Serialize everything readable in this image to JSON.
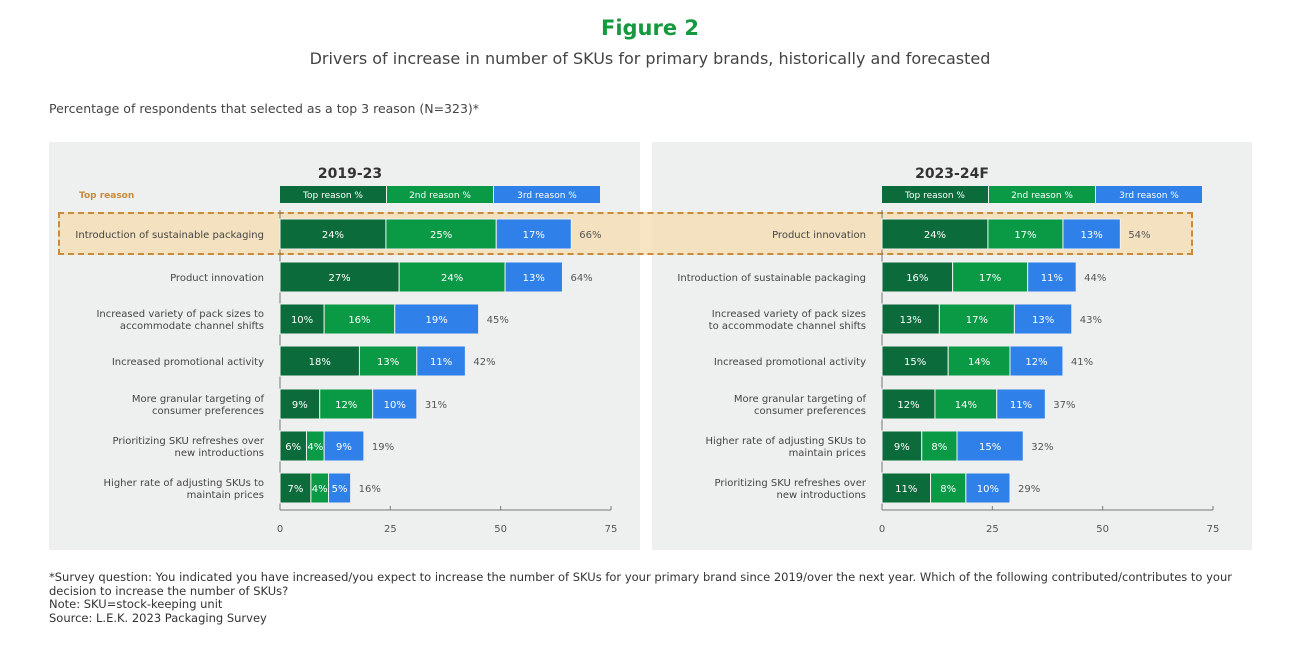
{
  "title": "Figure 2",
  "subtitle": "Drivers of increase in number of SKUs for primary brands, historically and forecasted",
  "description": "Percentage of respondents that selected as a top 3 reason (N=323)*",
  "colors": {
    "top": "#0b6b3a",
    "second": "#0a9a45",
    "third": "#2f80e8",
    "highlight": "#c98a3a",
    "title": "#14993f"
  },
  "chart_data": [
    {
      "type": "bar",
      "orientation": "horizontal",
      "stacked": true,
      "title": "2019-23",
      "highlight_label": "Top reason",
      "legend": [
        "Top reason %",
        "2nd reason %",
        "3rd reason %"
      ],
      "xlim": [
        0,
        75
      ],
      "xticks": [
        0,
        25,
        50,
        75
      ],
      "categories": [
        [
          "Introduction of sustainable packaging"
        ],
        [
          "Product innovation"
        ],
        [
          "Increased variety of pack sizes to",
          "accommodate channel shifts"
        ],
        [
          "Increased promotional activity"
        ],
        [
          "More granular targeting of",
          "consumer preferences"
        ],
        [
          "Prioritizing SKU refreshes over",
          "new introductions"
        ],
        [
          "Higher rate of adjusting SKUs to",
          "maintain prices"
        ]
      ],
      "series": [
        {
          "name": "Top reason %",
          "values": [
            24,
            27,
            10,
            18,
            9,
            6,
            7
          ]
        },
        {
          "name": "2nd reason %",
          "values": [
            25,
            24,
            16,
            13,
            12,
            4,
            4
          ]
        },
        {
          "name": "3rd reason %",
          "values": [
            17,
            13,
            19,
            11,
            10,
            9,
            5
          ]
        }
      ],
      "totals": [
        66,
        64,
        45,
        42,
        31,
        19,
        16
      ]
    },
    {
      "type": "bar",
      "orientation": "horizontal",
      "stacked": true,
      "title": "2023-24F",
      "legend": [
        "Top reason %",
        "2nd reason %",
        "3rd reason %"
      ],
      "xlim": [
        0,
        75
      ],
      "xticks": [
        0,
        25,
        50,
        75
      ],
      "categories": [
        [
          "Product innovation"
        ],
        [
          "Introduction of sustainable packaging"
        ],
        [
          "Increased variety of pack sizes",
          "to accommodate channel shifts"
        ],
        [
          "Increased promotional activity"
        ],
        [
          "More granular targeting of",
          "consumer preferences"
        ],
        [
          "Higher rate of adjusting SKUs to",
          "maintain prices"
        ],
        [
          "Prioritizing SKU refreshes over",
          "new introductions"
        ]
      ],
      "series": [
        {
          "name": "Top reason %",
          "values": [
            24,
            16,
            13,
            15,
            12,
            9,
            11
          ]
        },
        {
          "name": "2nd reason %",
          "values": [
            17,
            17,
            17,
            14,
            14,
            8,
            8
          ]
        },
        {
          "name": "3rd reason %",
          "values": [
            13,
            11,
            13,
            12,
            11,
            15,
            10
          ]
        }
      ],
      "totals": [
        54,
        44,
        43,
        41,
        37,
        32,
        29
      ]
    }
  ],
  "footnotes": [
    "*Survey question: You indicated you have increased/you expect to increase the number of SKUs for your primary brand since 2019/over the next year. Which of the following contributed/contributes to your decision to increase the number of SKUs?",
    "Note: SKU=stock-keeping unit",
    "Source: L.E.K. 2023 Packaging Survey"
  ]
}
